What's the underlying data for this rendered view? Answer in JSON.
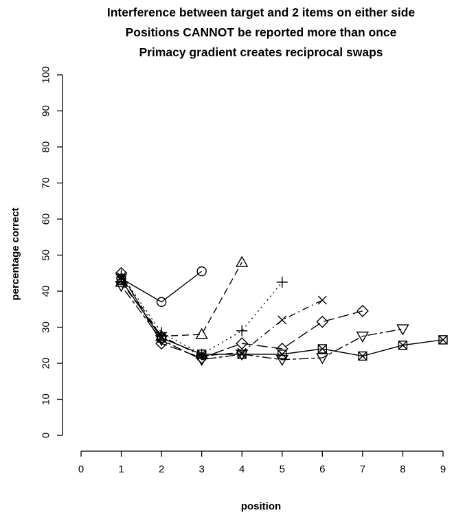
{
  "chart_data": {
    "type": "line",
    "title": [
      "Interference between target and 2 items on either side",
      "Positions CANNOT be reported more than once",
      "Primacy gradient creates reciprocal swaps"
    ],
    "xlabel": "position",
    "ylabel": "percentage correct",
    "xlim": [
      0,
      9
    ],
    "ylim": [
      0,
      100
    ],
    "xticks": [
      0,
      1,
      2,
      3,
      4,
      5,
      6,
      7,
      8,
      9
    ],
    "yticks": [
      0,
      10,
      20,
      30,
      40,
      50,
      60,
      70,
      80,
      90,
      100
    ],
    "grid": false,
    "series": [
      {
        "x": [
          1,
          2,
          3
        ],
        "values": [
          43.5,
          37,
          45.5
        ],
        "marker": "circle",
        "linestyle": "solid"
      },
      {
        "x": [
          1,
          2,
          3,
          4
        ],
        "values": [
          42.5,
          27.5,
          28,
          48
        ],
        "marker": "triangle",
        "linestyle": "dashed"
      },
      {
        "x": [
          1,
          2,
          3,
          4,
          5
        ],
        "values": [
          44.5,
          28.5,
          22.5,
          29,
          42.5
        ],
        "marker": "plus",
        "linestyle": "dotted"
      },
      {
        "x": [
          1,
          2,
          3,
          4,
          5,
          6
        ],
        "values": [
          44,
          27.5,
          22,
          23,
          32,
          37.5
        ],
        "marker": "cross",
        "linestyle": "dotdash"
      },
      {
        "x": [
          1,
          2,
          3,
          4,
          5,
          6,
          7
        ],
        "values": [
          45,
          25.5,
          21.5,
          25.5,
          24,
          31.5,
          34.5
        ],
        "marker": "diamond",
        "linestyle": "longdash"
      },
      {
        "x": [
          1,
          2,
          3,
          4,
          5,
          6,
          7,
          8
        ],
        "values": [
          41.5,
          26.5,
          21,
          22.5,
          21,
          21.5,
          27.5,
          29.5
        ],
        "marker": "triangle-down",
        "linestyle": "twodash"
      },
      {
        "x": [
          1,
          2,
          3,
          4,
          5,
          6,
          7,
          8,
          9
        ],
        "values": [
          43,
          27,
          22.5,
          22.5,
          22.5,
          24,
          22,
          25,
          26.5
        ],
        "marker": "square-x",
        "linestyle": "solid"
      }
    ]
  }
}
